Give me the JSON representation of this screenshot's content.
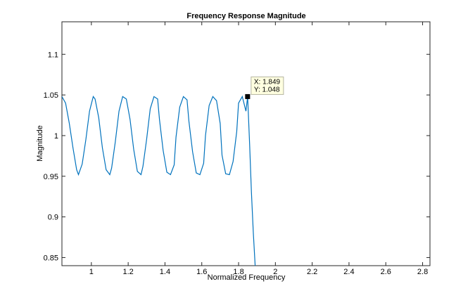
{
  "chart_data": {
    "type": "line",
    "title": "Frequency Response Magnitude",
    "xlabel": "Normalized Frequency",
    "ylabel": "Magnitude",
    "xlim": [
      0.84,
      2.84
    ],
    "ylim": [
      0.84,
      1.14
    ],
    "xticks": [
      1,
      1.2,
      1.4,
      1.6,
      1.8,
      2,
      2.2,
      2.4,
      2.6,
      2.8
    ],
    "xtick_labels": [
      "1",
      "1.2",
      "1.4",
      "1.6",
      "1.8",
      "2",
      "2.2",
      "2.4",
      "2.6",
      "2.8"
    ],
    "yticks": [
      0.85,
      0.9,
      0.95,
      1,
      1.05,
      1.1
    ],
    "ytick_labels": [
      "0.85",
      "0.9",
      "0.95",
      "1",
      "1.05",
      "1.1"
    ],
    "grid": false,
    "line_color": "#0072bd",
    "series": [
      {
        "x": [
          0.84,
          0.86,
          0.88,
          0.9,
          0.92,
          0.93,
          0.95,
          0.97,
          0.99,
          1.01,
          1.02,
          1.04,
          1.06,
          1.08,
          1.1,
          1.11,
          1.13,
          1.15,
          1.17,
          1.19,
          1.21,
          1.23,
          1.25,
          1.27,
          1.28,
          1.3,
          1.32,
          1.34,
          1.36,
          1.37,
          1.39,
          1.41,
          1.43,
          1.45,
          1.46,
          1.48,
          1.5,
          1.52,
          1.53,
          1.55,
          1.57,
          1.59,
          1.61,
          1.62,
          1.64,
          1.66,
          1.68,
          1.7,
          1.71,
          1.73,
          1.75,
          1.77,
          1.79,
          1.8,
          1.82,
          1.84,
          1.849,
          1.86,
          1.87,
          1.88,
          1.89,
          1.9
        ],
        "y": [
          1.048,
          1.04,
          1.015,
          0.985,
          0.958,
          0.952,
          0.965,
          0.995,
          1.03,
          1.048,
          1.045,
          1.022,
          0.985,
          0.958,
          0.952,
          0.96,
          0.992,
          1.03,
          1.048,
          1.045,
          1.02,
          0.983,
          0.956,
          0.952,
          0.962,
          0.995,
          1.033,
          1.048,
          1.045,
          1.02,
          0.982,
          0.955,
          0.952,
          0.964,
          0.998,
          1.035,
          1.048,
          1.044,
          1.018,
          0.98,
          0.954,
          0.952,
          0.966,
          1.0,
          1.037,
          1.048,
          1.043,
          1.015,
          0.976,
          0.953,
          0.952,
          0.968,
          1.005,
          1.04,
          1.048,
          1.03,
          1.048,
          0.99,
          0.93,
          0.88,
          0.84,
          0.8
        ]
      }
    ],
    "datatip": {
      "x": 1.849,
      "y": 1.048,
      "x_text": "X: 1.849",
      "y_text": "Y: 1.048"
    }
  }
}
